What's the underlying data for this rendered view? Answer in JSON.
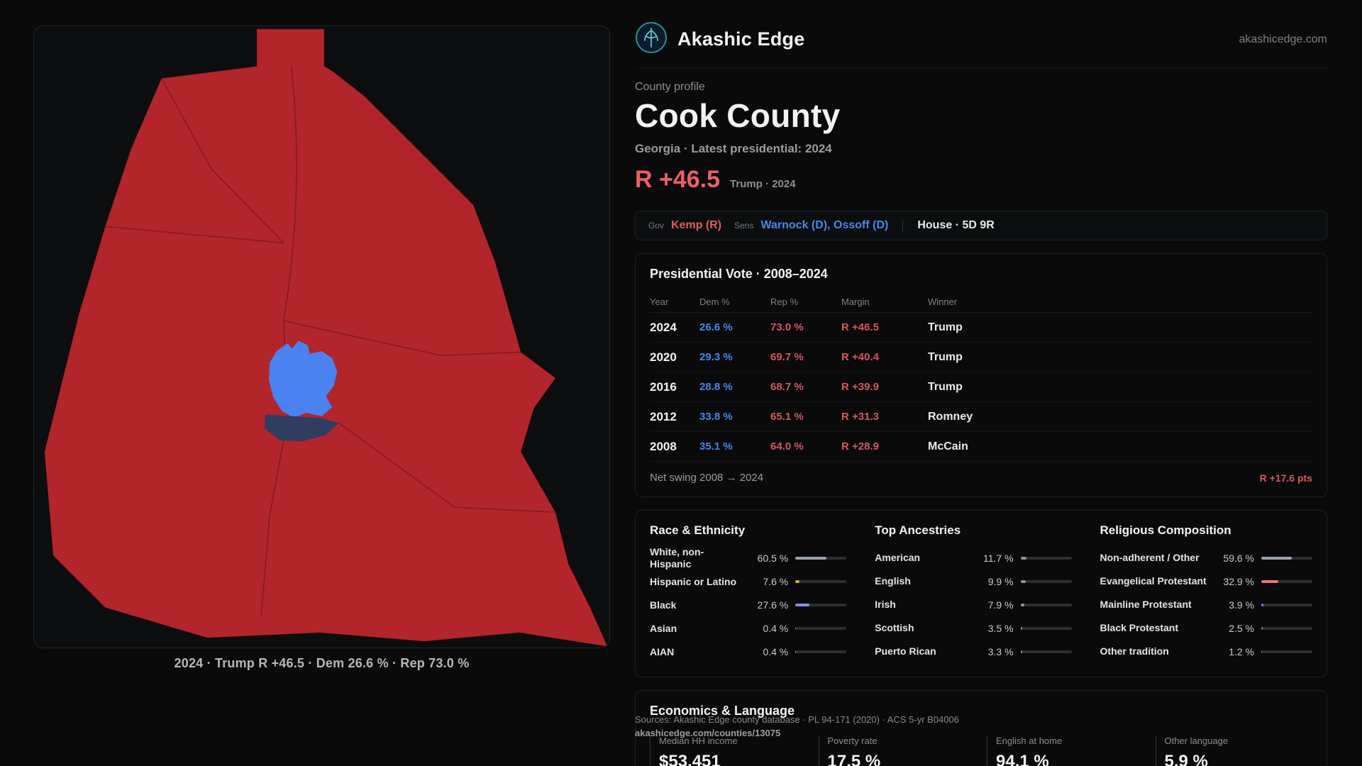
{
  "brand": {
    "name": "Akashic Edge",
    "domain": "akashicedge.com"
  },
  "profile": {
    "kicker": "County profile",
    "title": "Cook County",
    "subtitle": "Georgia · Latest presidential: 2024",
    "margin_big": "R +46.5",
    "margin_context": "Trump · 2024"
  },
  "officials": {
    "gov_label": "Gov",
    "gov": "Kemp (R)",
    "sens_label": "Sens",
    "sens": "Warnock (D), Ossoff (D)",
    "house": "House · 5D 9R"
  },
  "vote_table": {
    "title": "Presidential Vote · 2008–2024",
    "headers": [
      "Year",
      "Dem %",
      "Rep %",
      "Margin",
      "Winner"
    ],
    "rows": [
      {
        "year": "2024",
        "dem": "26.6 %",
        "rep": "73.0 %",
        "margin": "R +46.5",
        "winner": "Trump"
      },
      {
        "year": "2020",
        "dem": "29.3 %",
        "rep": "69.7 %",
        "margin": "R +40.4",
        "winner": "Trump"
      },
      {
        "year": "2016",
        "dem": "28.8 %",
        "rep": "68.7 %",
        "margin": "R +39.9",
        "winner": "Trump"
      },
      {
        "year": "2012",
        "dem": "33.8 %",
        "rep": "65.1 %",
        "margin": "R +31.3",
        "winner": "Romney"
      },
      {
        "year": "2008",
        "dem": "35.1 %",
        "rep": "64.0 %",
        "margin": "R +28.9",
        "winner": "McCain"
      }
    ],
    "net_swing_label": "Net swing 2008 → 2024",
    "net_swing_value": "R +17.6 pts"
  },
  "demographics": {
    "race": {
      "title": "Race & Ethnicity",
      "rows": [
        {
          "label": "White, non-Hispanic",
          "value": "60.5 %",
          "pct": 60.5,
          "color": "#9aa3ad"
        },
        {
          "label": "Hispanic or Latino",
          "value": "7.6 %",
          "pct": 7.6,
          "color": "#d9a43c"
        },
        {
          "label": "Black",
          "value": "27.6 %",
          "pct": 27.6,
          "color": "#8a8af0"
        },
        {
          "label": "Asian",
          "value": "0.4 %",
          "pct": 0.4,
          "color": "#4fae8d"
        },
        {
          "label": "AIAN",
          "value": "0.4 %",
          "pct": 0.4,
          "color": "#9aa3ad"
        }
      ]
    },
    "ancestries": {
      "title": "Top Ancestries",
      "rows": [
        {
          "label": "American",
          "value": "11.7 %",
          "pct": 11.7,
          "color": "#8f959b"
        },
        {
          "label": "English",
          "value": "9.9 %",
          "pct": 9.9,
          "color": "#8f959b"
        },
        {
          "label": "Irish",
          "value": "7.9 %",
          "pct": 7.9,
          "color": "#8f959b"
        },
        {
          "label": "Scottish",
          "value": "3.5 %",
          "pct": 3.5,
          "color": "#8f959b"
        },
        {
          "label": "Puerto Rican",
          "value": "3.3 %",
          "pct": 3.3,
          "color": "#d98e3c"
        }
      ]
    },
    "religion": {
      "title": "Religious Composition",
      "rows": [
        {
          "label": "Non-adherent / Other",
          "value": "59.6 %",
          "pct": 59.6,
          "color": "#9aa3ad"
        },
        {
          "label": "Evangelical Protestant",
          "value": "32.9 %",
          "pct": 32.9,
          "color": "#e87478"
        },
        {
          "label": "Mainline Protestant",
          "value": "3.9 %",
          "pct": 3.9,
          "color": "#5b8def"
        },
        {
          "label": "Black Protestant",
          "value": "2.5 %",
          "pct": 2.5,
          "color": "#5b8def"
        },
        {
          "label": "Other tradition",
          "value": "1.2 %",
          "pct": 1.2,
          "color": "#9aa3ad"
        }
      ]
    }
  },
  "economics": {
    "title": "Economics & Language",
    "metrics": [
      {
        "label": "Median HH income",
        "value": "$53,451"
      },
      {
        "label": "Poverty rate",
        "value": "17.5 %"
      },
      {
        "label": "English at home",
        "value": "94.1 %"
      },
      {
        "label": "Other language",
        "value": "5.9 %"
      }
    ]
  },
  "footer": {
    "sources": "Sources: Akashic Edge county database · PL 94-171 (2020) · ACS 5-yr B04006",
    "permalink": "akashicedge.com/counties/13075"
  },
  "map": {
    "caption": "2024 · Trump R +46.5 · Dem 26.6 % · Rep 73.0 %",
    "county_color": "#b2252b",
    "city_color": "#4b82f0",
    "suburb_color": "#2e3d60"
  }
}
